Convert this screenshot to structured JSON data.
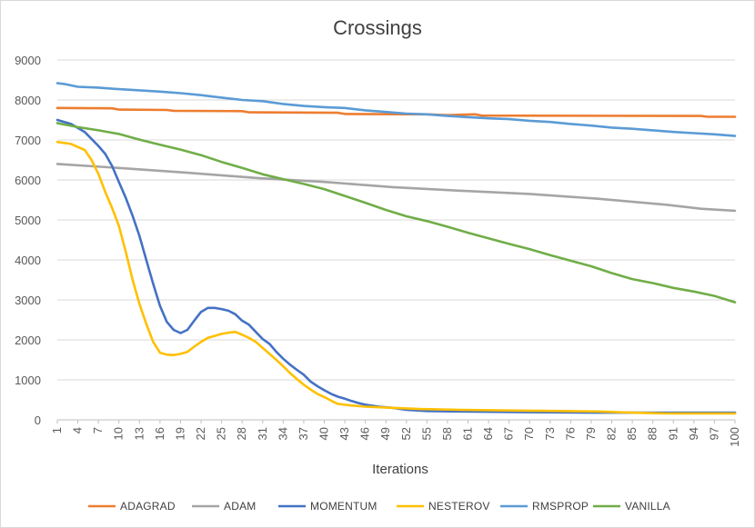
{
  "chart_data": {
    "type": "line",
    "title": "Crossings",
    "xlabel": "Iterations",
    "ylabel": "",
    "ylim": [
      0,
      9000
    ],
    "y_ticks": [
      0,
      1000,
      2000,
      3000,
      4000,
      5000,
      6000,
      7000,
      8000,
      9000
    ],
    "y_tick_labels": [
      "0",
      "1000",
      "2000",
      "3000",
      "4000",
      "5000",
      "6000",
      "7000",
      "8000",
      "9000"
    ],
    "x_ticks": [
      1,
      4,
      7,
      10,
      13,
      16,
      19,
      22,
      25,
      28,
      31,
      34,
      37,
      40,
      43,
      46,
      49,
      52,
      55,
      58,
      61,
      64,
      67,
      70,
      73,
      76,
      79,
      82,
      85,
      88,
      91,
      94,
      97,
      100
    ],
    "x_tick_labels": [
      "1",
      "4",
      "7",
      "10",
      "13",
      "16",
      "19",
      "22",
      "25",
      "28",
      "31",
      "34",
      "37",
      "40",
      "43",
      "46",
      "49",
      "52",
      "55",
      "58",
      "61",
      "64",
      "67",
      "70",
      "73",
      "76",
      "79",
      "82",
      "85",
      "88",
      "91",
      "94",
      "97",
      "100"
    ],
    "xlim": [
      1,
      100
    ],
    "grid": "horizontal",
    "legend_position": "bottom",
    "series": [
      {
        "name": "ADAGRAD",
        "color": "#ED7D31",
        "points": [
          [
            1,
            7800
          ],
          [
            9,
            7790
          ],
          [
            10,
            7760
          ],
          [
            17,
            7750
          ],
          [
            18,
            7730
          ],
          [
            28,
            7720
          ],
          [
            29,
            7690
          ],
          [
            42,
            7680
          ],
          [
            43,
            7650
          ],
          [
            55,
            7640
          ],
          [
            58,
            7620
          ],
          [
            62,
            7640
          ],
          [
            63,
            7610
          ],
          [
            95,
            7600
          ],
          [
            96,
            7580
          ],
          [
            100,
            7580
          ]
        ]
      },
      {
        "name": "ADAM",
        "color": "#A5A5A5",
        "points": [
          [
            1,
            6400
          ],
          [
            10,
            6300
          ],
          [
            20,
            6180
          ],
          [
            30,
            6050
          ],
          [
            40,
            5950
          ],
          [
            50,
            5820
          ],
          [
            60,
            5730
          ],
          [
            70,
            5650
          ],
          [
            80,
            5530
          ],
          [
            90,
            5380
          ],
          [
            95,
            5280
          ],
          [
            100,
            5230
          ]
        ]
      },
      {
        "name": "MOMENTUM",
        "color": "#4472C4",
        "points": [
          [
            1,
            7500
          ],
          [
            3,
            7400
          ],
          [
            5,
            7200
          ],
          [
            7,
            6850
          ],
          [
            8,
            6650
          ],
          [
            9,
            6350
          ],
          [
            10,
            5950
          ],
          [
            11,
            5550
          ],
          [
            12,
            5100
          ],
          [
            13,
            4600
          ],
          [
            14,
            4000
          ],
          [
            15,
            3400
          ],
          [
            16,
            2850
          ],
          [
            17,
            2450
          ],
          [
            18,
            2250
          ],
          [
            19,
            2170
          ],
          [
            20,
            2250
          ],
          [
            21,
            2480
          ],
          [
            22,
            2700
          ],
          [
            23,
            2800
          ],
          [
            24,
            2800
          ],
          [
            25,
            2770
          ],
          [
            26,
            2730
          ],
          [
            27,
            2640
          ],
          [
            28,
            2480
          ],
          [
            29,
            2380
          ],
          [
            30,
            2200
          ],
          [
            31,
            2020
          ],
          [
            32,
            1900
          ],
          [
            33,
            1700
          ],
          [
            34,
            1530
          ],
          [
            35,
            1380
          ],
          [
            36,
            1250
          ],
          [
            37,
            1130
          ],
          [
            38,
            960
          ],
          [
            39,
            840
          ],
          [
            40,
            740
          ],
          [
            41,
            650
          ],
          [
            42,
            580
          ],
          [
            43,
            530
          ],
          [
            44,
            470
          ],
          [
            45,
            420
          ],
          [
            46,
            380
          ],
          [
            48,
            330
          ],
          [
            50,
            300
          ],
          [
            52,
            250
          ],
          [
            55,
            220
          ],
          [
            60,
            210
          ],
          [
            65,
            200
          ],
          [
            70,
            190
          ],
          [
            80,
            180
          ],
          [
            90,
            180
          ],
          [
            100,
            180
          ]
        ]
      },
      {
        "name": "NESTEROV",
        "color": "#FFC000",
        "points": [
          [
            1,
            6950
          ],
          [
            3,
            6900
          ],
          [
            5,
            6750
          ],
          [
            6,
            6500
          ],
          [
            7,
            6150
          ],
          [
            8,
            5700
          ],
          [
            9,
            5300
          ],
          [
            10,
            4850
          ],
          [
            11,
            4200
          ],
          [
            12,
            3500
          ],
          [
            13,
            2900
          ],
          [
            14,
            2400
          ],
          [
            15,
            1950
          ],
          [
            16,
            1680
          ],
          [
            17,
            1630
          ],
          [
            18,
            1620
          ],
          [
            19,
            1650
          ],
          [
            20,
            1700
          ],
          [
            21,
            1830
          ],
          [
            22,
            1950
          ],
          [
            23,
            2050
          ],
          [
            24,
            2100
          ],
          [
            25,
            2150
          ],
          [
            26,
            2180
          ],
          [
            27,
            2200
          ],
          [
            28,
            2130
          ],
          [
            29,
            2050
          ],
          [
            30,
            1950
          ],
          [
            31,
            1800
          ],
          [
            32,
            1650
          ],
          [
            33,
            1500
          ],
          [
            34,
            1340
          ],
          [
            35,
            1170
          ],
          [
            36,
            1020
          ],
          [
            37,
            880
          ],
          [
            38,
            760
          ],
          [
            39,
            650
          ],
          [
            40,
            570
          ],
          [
            41,
            480
          ],
          [
            42,
            400
          ],
          [
            44,
            360
          ],
          [
            46,
            330
          ],
          [
            50,
            300
          ],
          [
            54,
            270
          ],
          [
            60,
            250
          ],
          [
            70,
            230
          ],
          [
            75,
            220
          ],
          [
            80,
            210
          ],
          [
            85,
            180
          ],
          [
            90,
            160
          ],
          [
            100,
            160
          ]
        ]
      },
      {
        "name": "RMSPROP",
        "color": "#5B9BD5",
        "points": [
          [
            1,
            8420
          ],
          [
            2,
            8400
          ],
          [
            4,
            8330
          ],
          [
            7,
            8310
          ],
          [
            10,
            8270
          ],
          [
            13,
            8240
          ],
          [
            16,
            8210
          ],
          [
            19,
            8170
          ],
          [
            22,
            8120
          ],
          [
            25,
            8060
          ],
          [
            28,
            8000
          ],
          [
            31,
            7970
          ],
          [
            34,
            7900
          ],
          [
            37,
            7850
          ],
          [
            40,
            7820
          ],
          [
            43,
            7800
          ],
          [
            46,
            7740
          ],
          [
            49,
            7700
          ],
          [
            52,
            7660
          ],
          [
            55,
            7640
          ],
          [
            58,
            7600
          ],
          [
            61,
            7570
          ],
          [
            64,
            7540
          ],
          [
            67,
            7520
          ],
          [
            70,
            7480
          ],
          [
            73,
            7450
          ],
          [
            76,
            7400
          ],
          [
            79,
            7360
          ],
          [
            82,
            7310
          ],
          [
            85,
            7280
          ],
          [
            88,
            7240
          ],
          [
            91,
            7200
          ],
          [
            94,
            7170
          ],
          [
            97,
            7140
          ],
          [
            100,
            7100
          ]
        ]
      },
      {
        "name": "VANILLA",
        "color": "#70AD47",
        "points": [
          [
            1,
            7420
          ],
          [
            4,
            7320
          ],
          [
            7,
            7240
          ],
          [
            10,
            7150
          ],
          [
            13,
            7010
          ],
          [
            16,
            6880
          ],
          [
            19,
            6760
          ],
          [
            22,
            6620
          ],
          [
            25,
            6450
          ],
          [
            28,
            6300
          ],
          [
            31,
            6140
          ],
          [
            34,
            6020
          ],
          [
            37,
            5900
          ],
          [
            40,
            5770
          ],
          [
            43,
            5600
          ],
          [
            46,
            5430
          ],
          [
            49,
            5250
          ],
          [
            52,
            5090
          ],
          [
            55,
            4970
          ],
          [
            58,
            4830
          ],
          [
            61,
            4680
          ],
          [
            64,
            4540
          ],
          [
            67,
            4400
          ],
          [
            70,
            4270
          ],
          [
            73,
            4120
          ],
          [
            76,
            3980
          ],
          [
            79,
            3840
          ],
          [
            82,
            3670
          ],
          [
            85,
            3520
          ],
          [
            88,
            3420
          ],
          [
            91,
            3300
          ],
          [
            94,
            3210
          ],
          [
            97,
            3100
          ],
          [
            100,
            2940
          ]
        ]
      }
    ]
  }
}
